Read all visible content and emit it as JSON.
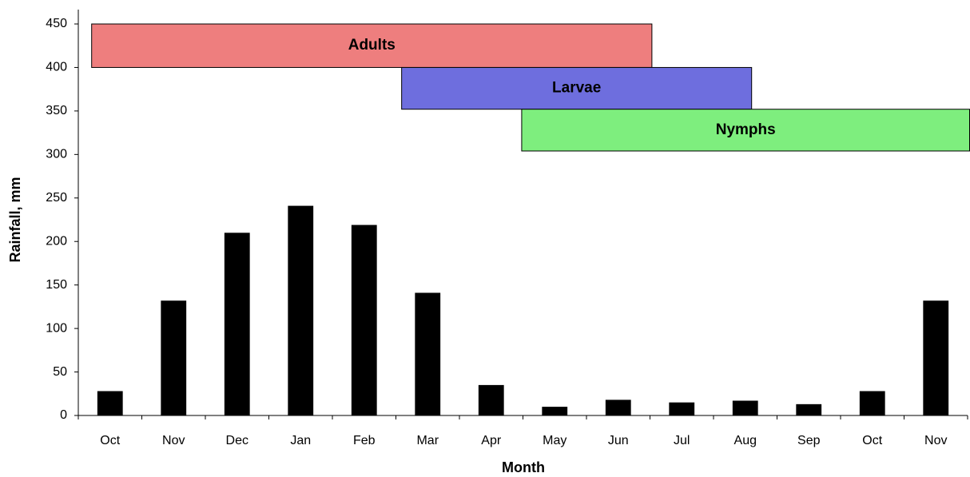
{
  "chart_data": {
    "type": "bar",
    "xlabel": "Month",
    "ylabel": "Rainfall, mm",
    "categories": [
      "Oct",
      "Nov",
      "Dec",
      "Jan",
      "Feb",
      "Mar",
      "Apr",
      "May",
      "Jun",
      "Jul",
      "Aug",
      "Sep",
      "Oct",
      "Nov"
    ],
    "values": [
      28,
      132,
      210,
      241,
      219,
      141,
      35,
      10,
      18,
      15,
      17,
      13,
      28,
      132
    ],
    "color": "#000000",
    "ylim": [
      0,
      450
    ],
    "yticks": [
      0,
      50,
      100,
      150,
      200,
      250,
      300,
      350,
      400,
      450
    ],
    "ranges": [
      {
        "label": "Adults",
        "color": "#ee7e7e",
        "x": [
          0.21,
          9.03
        ],
        "y": [
          400,
          450
        ]
      },
      {
        "label": "Larvae",
        "color": "#6e6ede",
        "x": [
          5.09,
          10.6
        ],
        "y": [
          352,
          400
        ]
      },
      {
        "label": "Nymphs",
        "color": "#7eee7e",
        "x": [
          6.98,
          14.04
        ],
        "y": [
          304,
          352
        ]
      }
    ]
  }
}
